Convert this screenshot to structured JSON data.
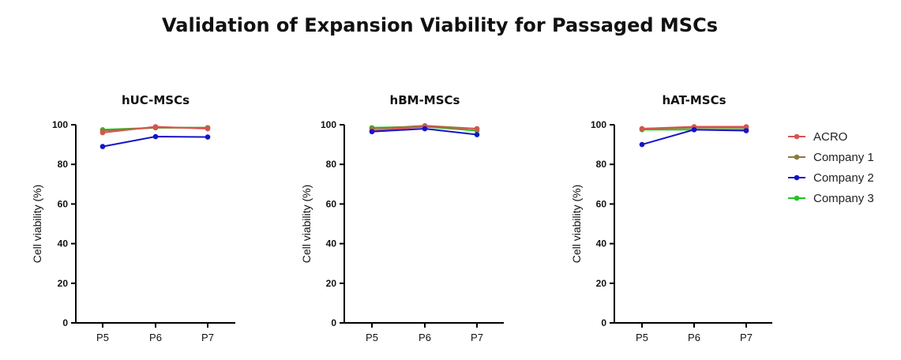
{
  "title": "Validation of Expansion Viability for Passaged MSCs",
  "legend": {
    "placement": "right",
    "entries": [
      {
        "name": "ACRO",
        "color": "#d9534f"
      },
      {
        "name": "Company 1",
        "color": "#8c7a3a"
      },
      {
        "name": "Company 2",
        "color": "#1515c8"
      },
      {
        "name": "Company 3",
        "color": "#22c422"
      }
    ]
  },
  "chart_data": [
    {
      "type": "line",
      "title": "hUC-MSCs",
      "xlabel": "",
      "ylabel": "Cell viability  (%)",
      "categories": [
        "P5",
        "P6",
        "P7"
      ],
      "ylim": [
        0,
        100
      ],
      "yticks": [
        0,
        20,
        40,
        60,
        80,
        100
      ],
      "grid": false,
      "series": [
        {
          "name": "Company 3",
          "values": [
            97.5,
            98.5,
            98.5
          ]
        },
        {
          "name": "Company 1",
          "values": [
            97,
            98.5,
            98.5
          ]
        },
        {
          "name": "ACRO",
          "values": [
            96,
            99,
            98
          ]
        },
        {
          "name": "Company 2",
          "values": [
            89,
            94,
            93.8
          ]
        }
      ]
    },
    {
      "type": "line",
      "title": "hBM-MSCs",
      "xlabel": "",
      "ylabel": "Cell viability  (%)",
      "categories": [
        "P5",
        "P6",
        "P7"
      ],
      "ylim": [
        0,
        100
      ],
      "yticks": [
        0,
        20,
        40,
        60,
        80,
        100
      ],
      "grid": false,
      "series": [
        {
          "name": "Company 3",
          "values": [
            98.5,
            99,
            97
          ]
        },
        {
          "name": "Company 1",
          "values": [
            98,
            99.5,
            98
          ]
        },
        {
          "name": "ACRO",
          "values": [
            97,
            99,
            98
          ]
        },
        {
          "name": "Company 2",
          "values": [
            96.5,
            98,
            95
          ]
        }
      ]
    },
    {
      "type": "line",
      "title": "hAT-MSCs",
      "xlabel": "",
      "ylabel": "Cell viability  (%)",
      "categories": [
        "P5",
        "P6",
        "P7"
      ],
      "ylim": [
        0,
        100
      ],
      "yticks": [
        0,
        20,
        40,
        60,
        80,
        100
      ],
      "grid": false,
      "series": [
        {
          "name": "Company 3",
          "values": [
            97.5,
            97.5,
            97.5
          ]
        },
        {
          "name": "Company 1",
          "values": [
            98,
            98.5,
            98.5
          ]
        },
        {
          "name": "ACRO",
          "values": [
            98,
            99,
            99
          ]
        },
        {
          "name": "Company 2",
          "values": [
            90,
            97.5,
            97
          ]
        }
      ]
    }
  ]
}
